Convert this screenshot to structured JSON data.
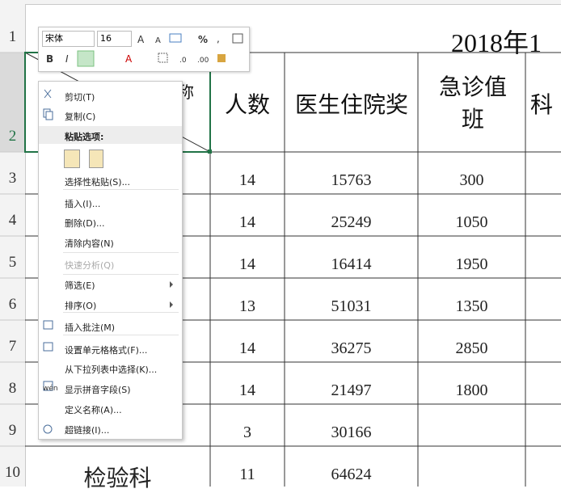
{
  "toolbar": {
    "font": "宋体",
    "size": "16"
  },
  "sheet": {
    "row_numbers": [
      1,
      2,
      3,
      4,
      5,
      6,
      7,
      8,
      9,
      10
    ],
    "title": "2018年1",
    "header": {
      "a": "名称",
      "b": "人数",
      "c": "医生住院奖",
      "d": "急诊值班",
      "e": "科"
    },
    "rows": [
      [
        null,
        14,
        15763,
        300
      ],
      [
        null,
        14,
        25249,
        1050
      ],
      [
        null,
        14,
        16414,
        1950
      ],
      [
        null,
        13,
        51031,
        1350
      ],
      [
        null,
        14,
        36275,
        2850
      ],
      [
        null,
        14,
        21497,
        1800
      ],
      [
        null,
        3,
        30166,
        null
      ],
      [
        "检验科",
        11,
        64624,
        null
      ]
    ]
  },
  "menu": {
    "items": [
      {
        "label": "剪切(T)"
      },
      {
        "label": "复制(C)"
      },
      {
        "label": "粘贴选项:"
      },
      {
        "label": "选择性粘贴(S)..."
      },
      {
        "label": "插入(I)..."
      },
      {
        "label": "删除(D)..."
      },
      {
        "label": "清除内容(N)"
      },
      {
        "label": "快速分析(Q)"
      },
      {
        "label": "筛选(E)"
      },
      {
        "label": "排序(O)"
      },
      {
        "label": "插入批注(M)"
      },
      {
        "label": "设置单元格格式(F)..."
      },
      {
        "label": "从下拉列表中选择(K)..."
      },
      {
        "label": "显示拼音字段(S)"
      },
      {
        "label": "定义名称(A)..."
      },
      {
        "label": "超链接(I)..."
      }
    ]
  }
}
